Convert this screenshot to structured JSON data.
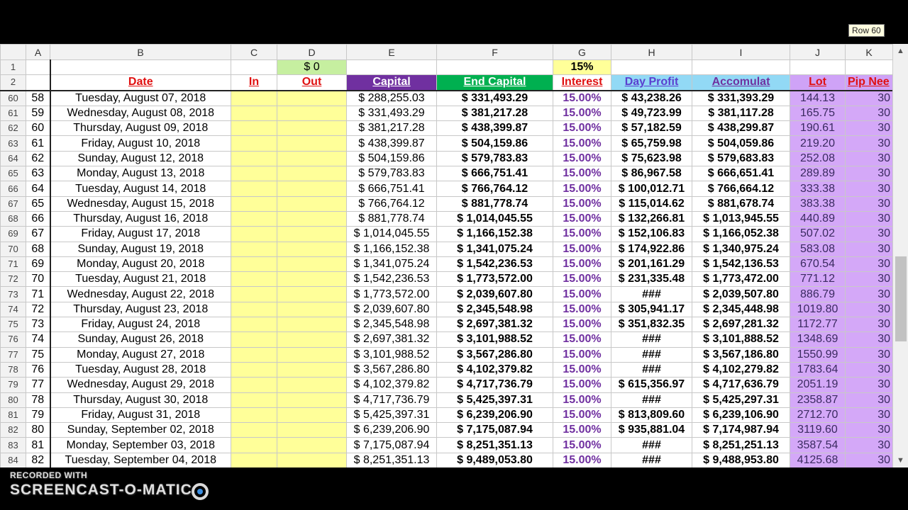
{
  "columns": [
    "A",
    "B",
    "C",
    "D",
    "E",
    "F",
    "G",
    "H",
    "I",
    "J",
    "K"
  ],
  "selected_column": "I",
  "row1": {
    "row_number": "1",
    "D": "$ 0",
    "G": "15%"
  },
  "row2": {
    "row_number": "2",
    "date": "Date",
    "in": "In",
    "out": "Out",
    "capital": "Capital",
    "end_capital": "End Capital",
    "interest": "Interest",
    "day_profit": "Day Profit",
    "accumulat": "Accomulat",
    "lot": "Lot",
    "pip": "Pip Nee"
  },
  "colors": {
    "capital_header": "#7030a0",
    "end_capital_header": "#00b050",
    "profit_header": "#92d9f5",
    "lot_header": "#cfa3f7",
    "in_out_fill": "#ffff99",
    "selected_column": "#1c7fd8"
  },
  "rows": [
    [
      "60",
      "58",
      "Tuesday, August 07, 2018",
      "$ 288,255.03",
      "$ 331,493.29",
      "15.00%",
      "$ 43,238.26",
      "$ 331,393.29",
      "144.13",
      "30"
    ],
    [
      "61",
      "59",
      "Wednesday, August 08, 2018",
      "$ 331,493.29",
      "$ 381,217.28",
      "15.00%",
      "$ 49,723.99",
      "$ 381,117.28",
      "165.75",
      "30"
    ],
    [
      "62",
      "60",
      "Thursday, August 09, 2018",
      "$ 381,217.28",
      "$ 438,399.87",
      "15.00%",
      "$ 57,182.59",
      "$ 438,299.87",
      "190.61",
      "30"
    ],
    [
      "63",
      "61",
      "Friday, August 10, 2018",
      "$ 438,399.87",
      "$ 504,159.86",
      "15.00%",
      "$ 65,759.98",
      "$ 504,059.86",
      "219.20",
      "30"
    ],
    [
      "64",
      "62",
      "Sunday, August 12, 2018",
      "$ 504,159.86",
      "$ 579,783.83",
      "15.00%",
      "$ 75,623.98",
      "$ 579,683.83",
      "252.08",
      "30"
    ],
    [
      "65",
      "63",
      "Monday, August 13, 2018",
      "$ 579,783.83",
      "$ 666,751.41",
      "15.00%",
      "$ 86,967.58",
      "$ 666,651.41",
      "289.89",
      "30"
    ],
    [
      "66",
      "64",
      "Tuesday, August 14, 2018",
      "$ 666,751.41",
      "$ 766,764.12",
      "15.00%",
      "$ 100,012.71",
      "$ 766,664.12",
      "333.38",
      "30"
    ],
    [
      "67",
      "65",
      "Wednesday, August 15, 2018",
      "$ 766,764.12",
      "$ 881,778.74",
      "15.00%",
      "$ 115,014.62",
      "$ 881,678.74",
      "383.38",
      "30"
    ],
    [
      "68",
      "66",
      "Thursday, August 16, 2018",
      "$ 881,778.74",
      "$ 1,014,045.55",
      "15.00%",
      "$ 132,266.81",
      "$ 1,013,945.55",
      "440.89",
      "30"
    ],
    [
      "69",
      "67",
      "Friday, August 17, 2018",
      "$ 1,014,045.55",
      "$ 1,166,152.38",
      "15.00%",
      "$ 152,106.83",
      "$ 1,166,052.38",
      "507.02",
      "30"
    ],
    [
      "70",
      "68",
      "Sunday, August 19, 2018",
      "$ 1,166,152.38",
      "$ 1,341,075.24",
      "15.00%",
      "$ 174,922.86",
      "$ 1,340,975.24",
      "583.08",
      "30"
    ],
    [
      "71",
      "69",
      "Monday, August 20, 2018",
      "$ 1,341,075.24",
      "$ 1,542,236.53",
      "15.00%",
      "$ 201,161.29",
      "$ 1,542,136.53",
      "670.54",
      "30"
    ],
    [
      "72",
      "70",
      "Tuesday, August 21, 2018",
      "$ 1,542,236.53",
      "$ 1,773,572.00",
      "15.00%",
      "$ 231,335.48",
      "$ 1,773,472.00",
      "771.12",
      "30"
    ],
    [
      "73",
      "71",
      "Wednesday, August 22, 2018",
      "$ 1,773,572.00",
      "$ 2,039,607.80",
      "15.00%",
      "###",
      "$ 2,039,507.80",
      "886.79",
      "30"
    ],
    [
      "74",
      "72",
      "Thursday, August 23, 2018",
      "$ 2,039,607.80",
      "$ 2,345,548.98",
      "15.00%",
      "$ 305,941.17",
      "$ 2,345,448.98",
      "1019.80",
      "30"
    ],
    [
      "75",
      "73",
      "Friday, August 24, 2018",
      "$ 2,345,548.98",
      "$ 2,697,381.32",
      "15.00%",
      "$ 351,832.35",
      "$ 2,697,281.32",
      "1172.77",
      "30"
    ],
    [
      "76",
      "74",
      "Sunday, August 26, 2018",
      "$ 2,697,381.32",
      "$ 3,101,988.52",
      "15.00%",
      "###",
      "$ 3,101,888.52",
      "1348.69",
      "30"
    ],
    [
      "77",
      "75",
      "Monday, August 27, 2018",
      "$ 3,101,988.52",
      "$ 3,567,286.80",
      "15.00%",
      "###",
      "$ 3,567,186.80",
      "1550.99",
      "30"
    ],
    [
      "78",
      "76",
      "Tuesday, August 28, 2018",
      "$ 3,567,286.80",
      "$ 4,102,379.82",
      "15.00%",
      "###",
      "$ 4,102,279.82",
      "1783.64",
      "30"
    ],
    [
      "79",
      "77",
      "Wednesday, August 29, 2018",
      "$ 4,102,379.82",
      "$ 4,717,736.79",
      "15.00%",
      "$ 615,356.97",
      "$ 4,717,636.79",
      "2051.19",
      "30"
    ],
    [
      "80",
      "78",
      "Thursday, August 30, 2018",
      "$ 4,717,736.79",
      "$ 5,425,397.31",
      "15.00%",
      "###",
      "$ 5,425,297.31",
      "2358.87",
      "30"
    ],
    [
      "81",
      "79",
      "Friday, August 31, 2018",
      "$ 5,425,397.31",
      "$ 6,239,206.90",
      "15.00%",
      "$ 813,809.60",
      "$ 6,239,106.90",
      "2712.70",
      "30"
    ],
    [
      "82",
      "80",
      "Sunday, September 02, 2018",
      "$ 6,239,206.90",
      "$ 7,175,087.94",
      "15.00%",
      "$ 935,881.04",
      "$ 7,174,987.94",
      "3119.60",
      "30"
    ],
    [
      "83",
      "81",
      "Monday, September 03, 2018",
      "$ 7,175,087.94",
      "$ 8,251,351.13",
      "15.00%",
      "###",
      "$ 8,251,251.13",
      "3587.54",
      "30"
    ],
    [
      "84",
      "82",
      "Tuesday, September 04, 2018",
      "$ 8,251,351.13",
      "$ 9,489,053.80",
      "15.00%",
      "###",
      "$ 9,488,953.80",
      "4125.68",
      "30"
    ]
  ],
  "tooltip": "Row 60",
  "watermark": {
    "line1": "RECORDED WITH",
    "line2": "SCREENCAST-O-MATIC"
  }
}
